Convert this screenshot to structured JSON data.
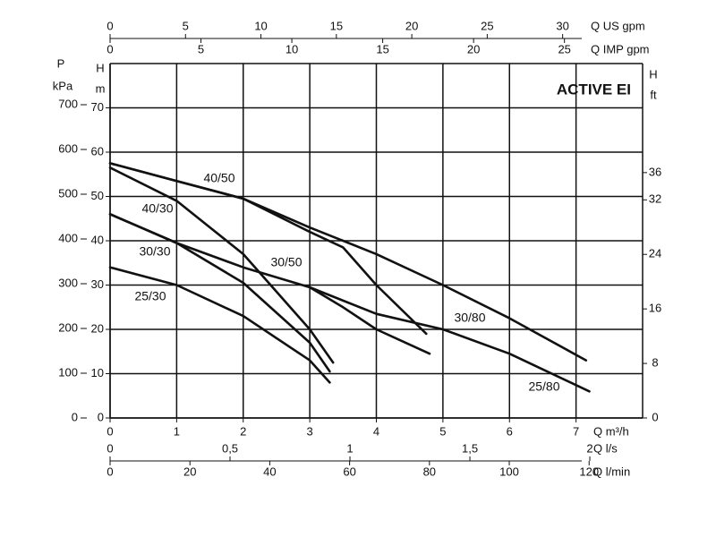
{
  "chart_data": {
    "type": "line",
    "title": "ACTIVE EI",
    "xlabel": "Q m³/h",
    "xlim": [
      0,
      8
    ],
    "xticks": [
      0,
      1,
      2,
      3,
      4,
      5,
      6,
      7
    ],
    "ylabel": {
      "quantity": "H",
      "unit": "m"
    },
    "ylim": [
      0,
      80
    ],
    "yticks": [
      0,
      10,
      20,
      30,
      40,
      50,
      60,
      70
    ],
    "pressure_axis": {
      "quantity": "P",
      "unit": "kPa",
      "lim": [
        0,
        792
      ],
      "ticks": [
        0,
        100,
        200,
        300,
        400,
        500,
        600,
        700
      ]
    },
    "y2label": {
      "quantity": "H",
      "unit": "ft"
    },
    "y2lim": [
      0,
      52
    ],
    "y2ticks": [
      0,
      8,
      16,
      24,
      32,
      36
    ],
    "top_axes": [
      {
        "label": "Q US gpm",
        "lim": [
          0,
          35.3
        ],
        "ticks": [
          0,
          5,
          10,
          15,
          20,
          25,
          30
        ]
      },
      {
        "label": "Q IMP gpm",
        "lim": [
          0,
          29.3
        ],
        "ticks": [
          0,
          5,
          10,
          15,
          20,
          25
        ]
      }
    ],
    "bottom_axes": [
      {
        "label": "Q l/s",
        "lim": [
          0,
          2.22
        ],
        "ticks": [
          0,
          {
            "value": 0.5,
            "label": "0,5"
          },
          1,
          {
            "value": 1.5,
            "label": "1,5"
          },
          2
        ]
      },
      {
        "label": "Q l/min",
        "lim": [
          0,
          133.4
        ],
        "ticks": [
          0,
          20,
          40,
          60,
          80,
          100,
          120
        ]
      }
    ],
    "grid": true,
    "series": [
      {
        "name": "40/50",
        "color": "#111111",
        "x": [
          0,
          1,
          2,
          3,
          3.5,
          4,
          4.75
        ],
        "values": [
          57.5,
          53.5,
          49.5,
          42,
          38.5,
          30,
          19
        ]
      },
      {
        "name": "40/30",
        "color": "#111111",
        "x": [
          0,
          1,
          2,
          3,
          3.35
        ],
        "values": [
          56.5,
          49,
          37,
          20,
          12.5
        ]
      },
      {
        "name": "30/30",
        "color": "#111111",
        "x": [
          0,
          1,
          2,
          3,
          3.3
        ],
        "values": [
          46,
          39.5,
          30.5,
          17,
          10.5
        ]
      },
      {
        "name": "30/50",
        "color": "#111111",
        "x": [
          0,
          1,
          2,
          3,
          3.5,
          4,
          4.8
        ],
        "values": [
          46,
          39.5,
          34,
          29.5,
          25,
          20,
          14.5
        ]
      },
      {
        "name": "25/30",
        "color": "#111111",
        "x": [
          0,
          1,
          2,
          3,
          3.3
        ],
        "values": [
          34,
          30,
          23,
          13,
          8
        ]
      },
      {
        "name": "30/80",
        "color": "#111111",
        "x": [
          0,
          1,
          2,
          3,
          3.5,
          4,
          5,
          6,
          7.15
        ],
        "values": [
          57.5,
          53.5,
          49.5,
          43,
          40,
          37,
          30,
          22.5,
          13
        ]
      },
      {
        "name": "25/80",
        "color": "#111111",
        "x": [
          3,
          4,
          5,
          6,
          7.2
        ],
        "values": [
          29.5,
          23.5,
          20,
          14.5,
          6
        ]
      }
    ]
  }
}
